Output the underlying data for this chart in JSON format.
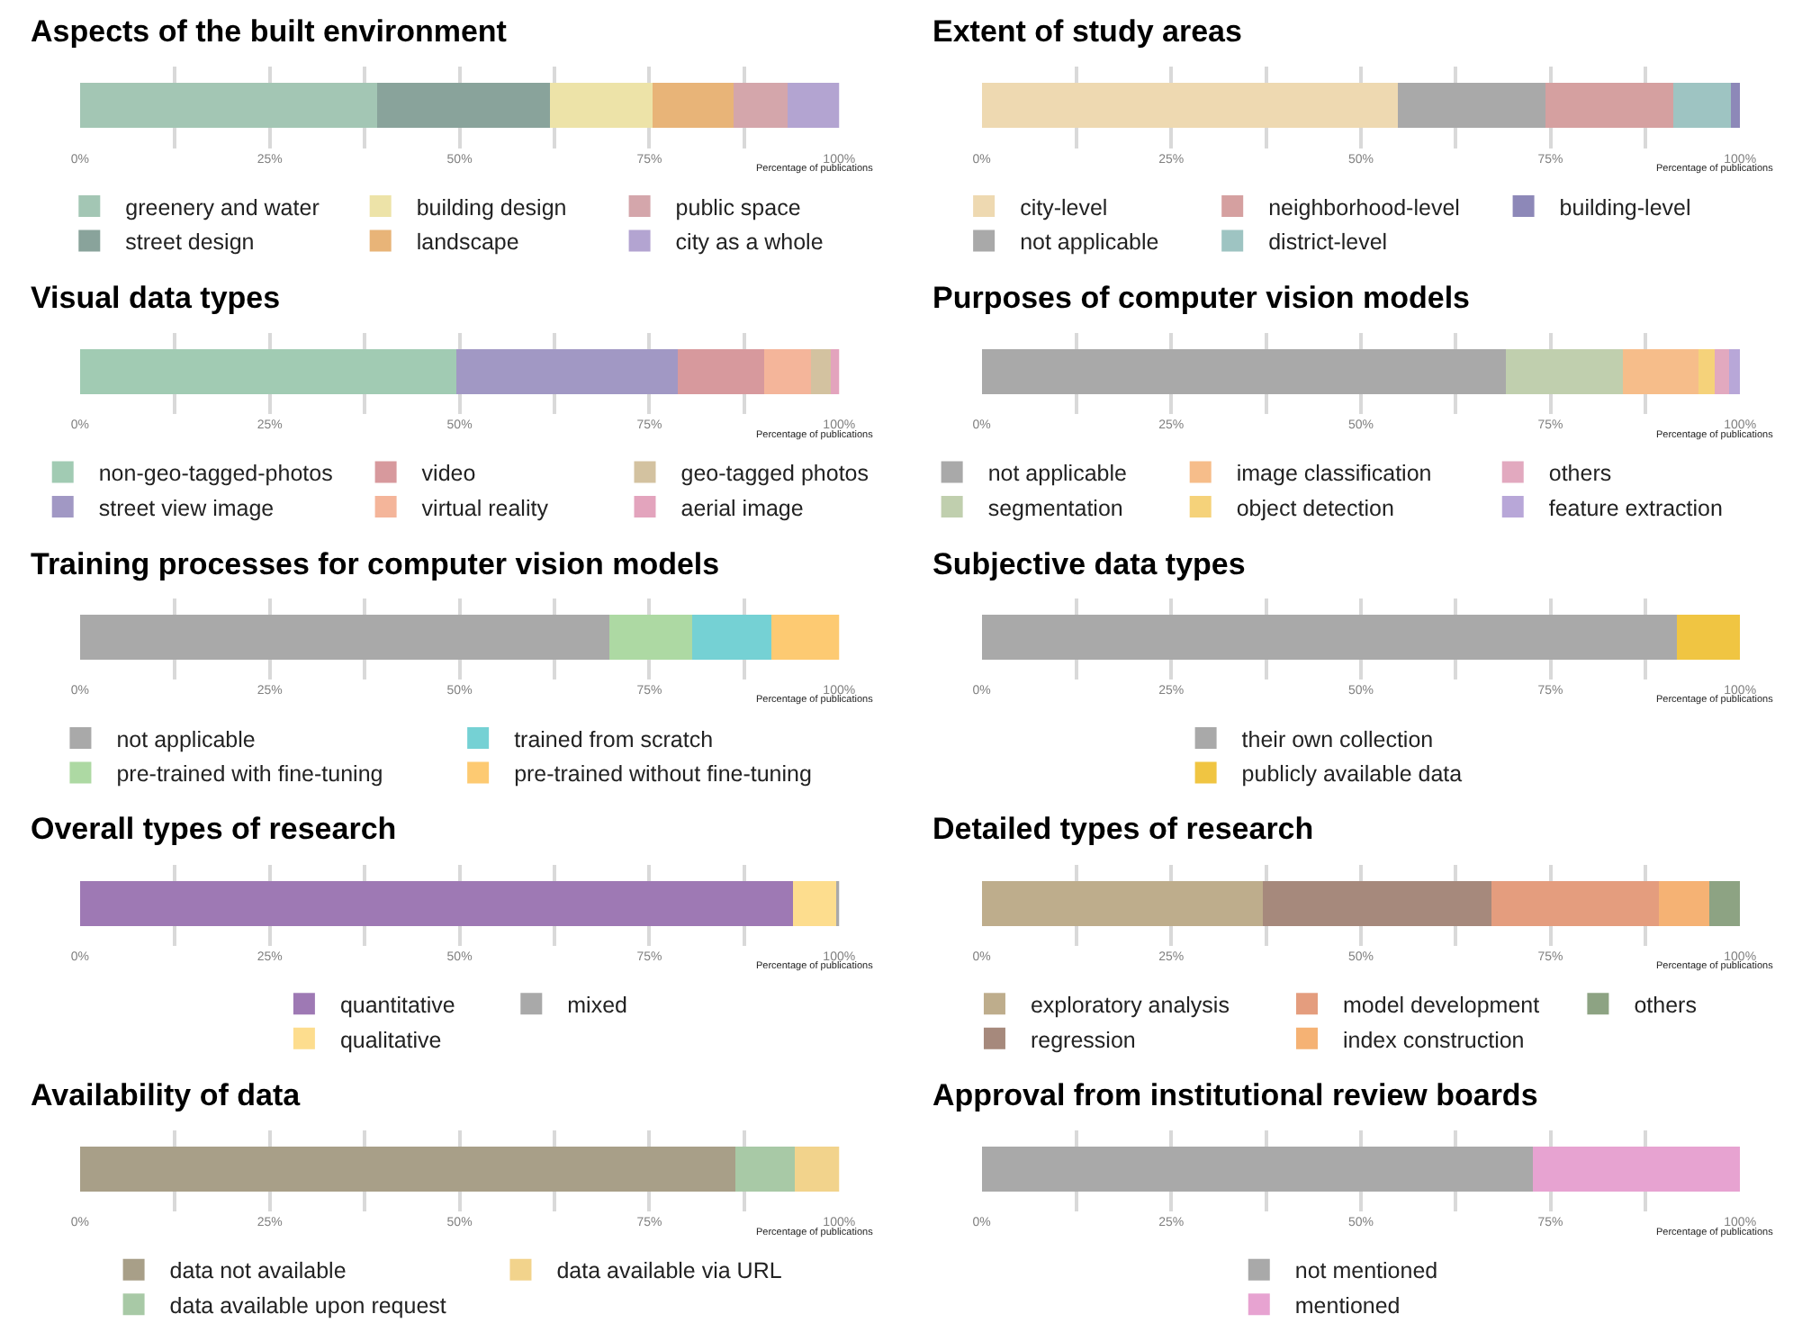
{
  "chart_data": [
    {
      "type": "bar",
      "orientation": "horizontal",
      "stacked": true,
      "title": "Aspects of the built environment",
      "xlabel": "Percentage of publications",
      "categories": [
        null
      ],
      "xlim": [
        0,
        100
      ],
      "xticks": [
        {
          "value": 0,
          "label": "0%"
        },
        {
          "value": 12.5,
          "label": null
        },
        {
          "value": 25,
          "label": "25%"
        },
        {
          "value": 37.5,
          "label": null
        },
        {
          "value": 50,
          "label": "50%"
        },
        {
          "value": 62.5,
          "label": null
        },
        {
          "value": 75,
          "label": "75%"
        },
        {
          "value": 87.5,
          "label": null
        },
        {
          "value": 100,
          "label": "100%"
        }
      ],
      "grid": "x",
      "legend": "bottom",
      "tick_labels": "x",
      "series": [
        {
          "name": "greenery and water",
          "color": "#a3c6b4",
          "values": [
            39.1
          ]
        },
        {
          "name": "street design",
          "color": "#89a39b",
          "values": [
            22.7
          ]
        },
        {
          "name": "building design",
          "color": "#ede3a8",
          "values": [
            13.6
          ]
        },
        {
          "name": "landscape",
          "color": "#e8b478",
          "values": [
            10.6
          ]
        },
        {
          "name": "public space",
          "color": "#d4a6ab",
          "values": [
            7.1
          ]
        },
        {
          "name": "city as a whole",
          "color": "#b3a4d1",
          "values": [
            6.9
          ]
        }
      ]
    },
    {
      "type": "bar",
      "orientation": "horizontal",
      "stacked": true,
      "title": "Extent of study areas",
      "xlabel": "Percentage of publications",
      "categories": [
        null
      ],
      "xlim": [
        0,
        100
      ],
      "xticks": [
        {
          "value": 0,
          "label": "0%"
        },
        {
          "value": 12.5,
          "label": null
        },
        {
          "value": 25,
          "label": "25%"
        },
        {
          "value": 37.5,
          "label": null
        },
        {
          "value": 50,
          "label": "50%"
        },
        {
          "value": 62.5,
          "label": null
        },
        {
          "value": 75,
          "label": "75%"
        },
        {
          "value": 87.5,
          "label": null
        },
        {
          "value": 100,
          "label": "100%"
        }
      ],
      "grid": "x",
      "legend": "bottom",
      "tick_labels": "x",
      "series": [
        {
          "name": "city-level",
          "color": "#eed9b1",
          "values": [
            54.8
          ]
        },
        {
          "name": "not applicable",
          "color": "#a9a9a9",
          "values": [
            19.5
          ]
        },
        {
          "name": "neighborhood-level",
          "color": "#d5a0a0",
          "values": [
            16.8
          ]
        },
        {
          "name": "district-level",
          "color": "#9ec4c2",
          "values": [
            7.7
          ]
        },
        {
          "name": "building-level",
          "color": "#8d88b8",
          "values": [
            1.2
          ]
        }
      ]
    },
    {
      "type": "bar",
      "orientation": "horizontal",
      "stacked": true,
      "title": "Visual data types",
      "xlabel": "Percentage of publications",
      "categories": [
        null
      ],
      "xlim": [
        0,
        100
      ],
      "xticks": [
        {
          "value": 0,
          "label": "0%"
        },
        {
          "value": 12.5,
          "label": null
        },
        {
          "value": 25,
          "label": "25%"
        },
        {
          "value": 37.5,
          "label": null
        },
        {
          "value": 50,
          "label": "50%"
        },
        {
          "value": 62.5,
          "label": null
        },
        {
          "value": 75,
          "label": "75%"
        },
        {
          "value": 87.5,
          "label": null
        },
        {
          "value": 100,
          "label": "100%"
        }
      ],
      "grid": "x",
      "legend": "bottom",
      "tick_labels": "x",
      "series": [
        {
          "name": "non-geo-tagged-photos",
          "color": "#a1cbb3",
          "values": [
            49.6
          ]
        },
        {
          "name": "street view image",
          "color": "#a198c4",
          "values": [
            29.2
          ]
        },
        {
          "name": "video",
          "color": "#d7999d",
          "values": [
            11.4
          ]
        },
        {
          "name": "virtual reality",
          "color": "#f4b59a",
          "values": [
            6.1
          ]
        },
        {
          "name": "geo-tagged photos",
          "color": "#d3c2a0",
          "values": [
            2.7
          ]
        },
        {
          "name": "aerial image",
          "color": "#e3a4bd",
          "values": [
            1.0
          ]
        }
      ]
    },
    {
      "type": "bar",
      "orientation": "horizontal",
      "stacked": true,
      "title": "Purposes of computer vision models",
      "xlabel": "Percentage of publications",
      "categories": [
        null
      ],
      "xlim": [
        0,
        100
      ],
      "xticks": [
        {
          "value": 0,
          "label": "0%"
        },
        {
          "value": 12.5,
          "label": null
        },
        {
          "value": 25,
          "label": "25%"
        },
        {
          "value": 37.5,
          "label": null
        },
        {
          "value": 50,
          "label": "50%"
        },
        {
          "value": 62.5,
          "label": null
        },
        {
          "value": 75,
          "label": "75%"
        },
        {
          "value": 87.5,
          "label": null
        },
        {
          "value": 100,
          "label": "100%"
        }
      ],
      "grid": "x",
      "legend": "bottom",
      "tick_labels": "x",
      "series": [
        {
          "name": "not applicable",
          "color": "#a9a9a9",
          "values": [
            69.1
          ]
        },
        {
          "name": "segmentation",
          "color": "#c0cfae",
          "values": [
            15.5
          ]
        },
        {
          "name": "image classification",
          "color": "#f6bd8a",
          "values": [
            9.9
          ]
        },
        {
          "name": "object detection",
          "color": "#f5d27a",
          "values": [
            2.2
          ]
        },
        {
          "name": "others",
          "color": "#e2a9bf",
          "values": [
            1.8
          ]
        },
        {
          "name": "feature extraction",
          "color": "#b8a7d8",
          "values": [
            1.5
          ]
        }
      ]
    },
    {
      "type": "bar",
      "orientation": "horizontal",
      "stacked": true,
      "title": "Training processes for computer vision models",
      "xlabel": "Percentage of publications",
      "categories": [
        null
      ],
      "xlim": [
        0,
        100
      ],
      "xticks": [
        {
          "value": 0,
          "label": "0%"
        },
        {
          "value": 12.5,
          "label": null
        },
        {
          "value": 25,
          "label": "25%"
        },
        {
          "value": 37.5,
          "label": null
        },
        {
          "value": 50,
          "label": "50%"
        },
        {
          "value": 62.5,
          "label": null
        },
        {
          "value": 75,
          "label": "75%"
        },
        {
          "value": 87.5,
          "label": null
        },
        {
          "value": 100,
          "label": "100%"
        }
      ],
      "grid": "x",
      "legend": "bottom",
      "tick_labels": "x",
      "series": [
        {
          "name": "not applicable",
          "color": "#a9a9a9",
          "values": [
            69.7
          ]
        },
        {
          "name": "pre-trained with fine-tuning",
          "color": "#add9a3",
          "values": [
            11.0
          ]
        },
        {
          "name": "trained from scratch",
          "color": "#75d1d4",
          "values": [
            10.3
          ]
        },
        {
          "name": "pre-trained without fine-tuning",
          "color": "#fdca72",
          "values": [
            9.0
          ]
        }
      ]
    },
    {
      "type": "bar",
      "orientation": "horizontal",
      "stacked": true,
      "title": "Subjective data types",
      "xlabel": "Percentage of publications",
      "categories": [
        null
      ],
      "xlim": [
        0,
        100
      ],
      "xticks": [
        {
          "value": 0,
          "label": "0%"
        },
        {
          "value": 12.5,
          "label": null
        },
        {
          "value": 25,
          "label": "25%"
        },
        {
          "value": 37.5,
          "label": null
        },
        {
          "value": 50,
          "label": "50%"
        },
        {
          "value": 62.5,
          "label": null
        },
        {
          "value": 75,
          "label": "75%"
        },
        {
          "value": 87.5,
          "label": null
        },
        {
          "value": 100,
          "label": "100%"
        }
      ],
      "grid": "x",
      "legend": "bottom",
      "tick_labels": "x",
      "series": [
        {
          "name": "their own collection",
          "color": "#a9a9a9",
          "values": [
            91.7
          ]
        },
        {
          "name": "publicly available data",
          "color": "#f0c542",
          "values": [
            8.3
          ]
        }
      ]
    },
    {
      "type": "bar",
      "orientation": "horizontal",
      "stacked": true,
      "title": "Overall types of research",
      "xlabel": "Percentage of publications",
      "categories": [
        null
      ],
      "xlim": [
        0,
        100
      ],
      "xticks": [
        {
          "value": 0,
          "label": "0%"
        },
        {
          "value": 12.5,
          "label": null
        },
        {
          "value": 25,
          "label": "25%"
        },
        {
          "value": 37.5,
          "label": null
        },
        {
          "value": 50,
          "label": "50%"
        },
        {
          "value": 62.5,
          "label": null
        },
        {
          "value": 75,
          "label": "75%"
        },
        {
          "value": 87.5,
          "label": null
        },
        {
          "value": 100,
          "label": "100%"
        }
      ],
      "grid": "x",
      "legend": "bottom",
      "tick_labels": "x",
      "series": [
        {
          "name": "quantitative",
          "color": "#9e79b4",
          "values": [
            94.0
          ]
        },
        {
          "name": "qualitative",
          "color": "#fddd8e",
          "values": [
            5.5
          ]
        },
        {
          "name": "mixed",
          "color": "#a9a9a9",
          "values": [
            0.5
          ]
        }
      ]
    },
    {
      "type": "bar",
      "orientation": "horizontal",
      "stacked": true,
      "title": "Detailed types of research",
      "xlabel": "Percentage of publications",
      "categories": [
        null
      ],
      "xlim": [
        0,
        100
      ],
      "xticks": [
        {
          "value": 0,
          "label": "0%"
        },
        {
          "value": 12.5,
          "label": null
        },
        {
          "value": 25,
          "label": "25%"
        },
        {
          "value": 37.5,
          "label": null
        },
        {
          "value": 50,
          "label": "50%"
        },
        {
          "value": 62.5,
          "label": null
        },
        {
          "value": 75,
          "label": "75%"
        },
        {
          "value": 87.5,
          "label": null
        },
        {
          "value": 100,
          "label": "100%"
        }
      ],
      "grid": "x",
      "legend": "bottom",
      "tick_labels": "x",
      "series": [
        {
          "name": "exploratory analysis",
          "color": "#bead8c",
          "values": [
            37.0
          ]
        },
        {
          "name": "regression",
          "color": "#a6897c",
          "values": [
            30.2
          ]
        },
        {
          "name": "model development",
          "color": "#e49d7e",
          "values": [
            22.0
          ]
        },
        {
          "name": "index construction",
          "color": "#f5b274",
          "values": [
            6.7
          ]
        },
        {
          "name": "others",
          "color": "#8da383",
          "values": [
            4.1
          ]
        }
      ]
    },
    {
      "type": "bar",
      "orientation": "horizontal",
      "stacked": true,
      "title": "Availability of data",
      "xlabel": "Percentage of publications",
      "categories": [
        null
      ],
      "xlim": [
        0,
        100
      ],
      "xticks": [
        {
          "value": 0,
          "label": "0%"
        },
        {
          "value": 12.5,
          "label": null
        },
        {
          "value": 25,
          "label": "25%"
        },
        {
          "value": 37.5,
          "label": null
        },
        {
          "value": 50,
          "label": "50%"
        },
        {
          "value": 62.5,
          "label": null
        },
        {
          "value": 75,
          "label": "75%"
        },
        {
          "value": 87.5,
          "label": null
        },
        {
          "value": 100,
          "label": "100%"
        }
      ],
      "grid": "x",
      "legend": "bottom",
      "tick_labels": "x",
      "series": [
        {
          "name": "data not available",
          "color": "#a89f88",
          "values": [
            86.4
          ]
        },
        {
          "name": "data available upon request",
          "color": "#a8c9a6",
          "values": [
            7.7
          ]
        },
        {
          "name": "data available via URL",
          "color": "#f2d38c",
          "values": [
            5.9
          ]
        }
      ]
    },
    {
      "type": "bar",
      "orientation": "horizontal",
      "stacked": true,
      "title": "Approval from institutional review boards",
      "xlabel": "Percentage of publications",
      "categories": [
        null
      ],
      "xlim": [
        0,
        100
      ],
      "xticks": [
        {
          "value": 0,
          "label": "0%"
        },
        {
          "value": 12.5,
          "label": null
        },
        {
          "value": 25,
          "label": "25%"
        },
        {
          "value": 37.5,
          "label": null
        },
        {
          "value": 50,
          "label": "50%"
        },
        {
          "value": 62.5,
          "label": null
        },
        {
          "value": 75,
          "label": "75%"
        },
        {
          "value": 87.5,
          "label": null
        },
        {
          "value": 100,
          "label": "100%"
        }
      ],
      "grid": "x",
      "legend": "bottom",
      "tick_labels": "x",
      "series": [
        {
          "name": "not mentioned",
          "color": "#a9a9a9",
          "values": [
            72.7
          ]
        },
        {
          "name": "mentioned",
          "color": "#e7a3d1",
          "values": [
            27.3
          ]
        }
      ]
    }
  ]
}
